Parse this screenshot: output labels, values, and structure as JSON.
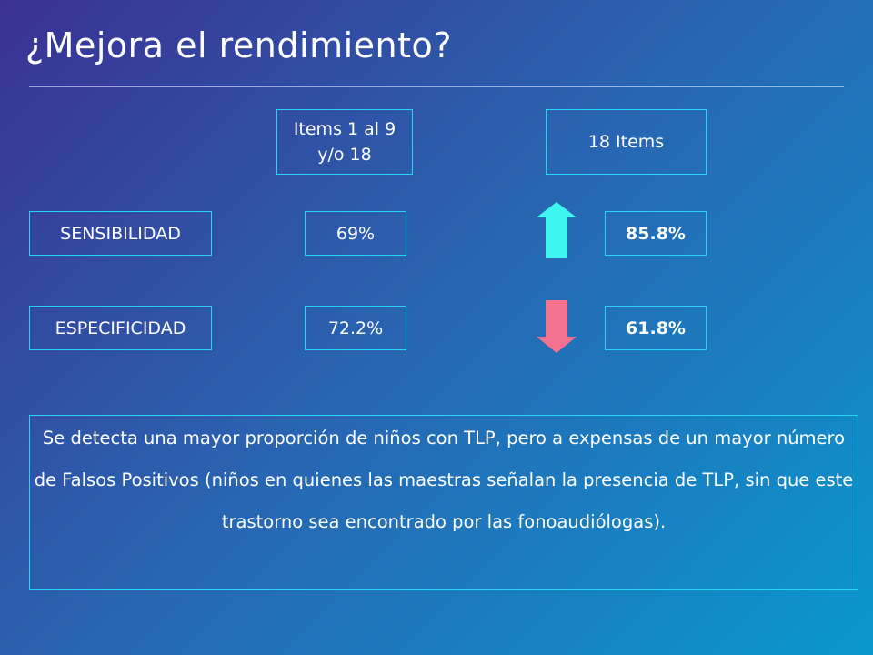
{
  "title": "¿Mejora el rendimiento?",
  "columns": {
    "col1_line1": "Items 1 al 9",
    "col1_line2": "y/o 18",
    "col2": "18 Items"
  },
  "rows": [
    {
      "label": "SENSIBILIDAD",
      "value1": "69%",
      "value2": "85.8%",
      "trend": "up",
      "trend_color": "#3ff5f0"
    },
    {
      "label": "ESPECIFICIDAD",
      "value1": "72.2%",
      "value2": "61.8%",
      "trend": "down",
      "trend_color": "#f2728f"
    }
  ],
  "conclusion": "Se detecta una mayor proporción de niños con TLP, pero a expensas de un mayor número de Falsos Positivos (niños en quienes las maestras señalan la presencia de TLP, sin que este trastorno sea encontrado por las fonoaudiólogas)."
}
